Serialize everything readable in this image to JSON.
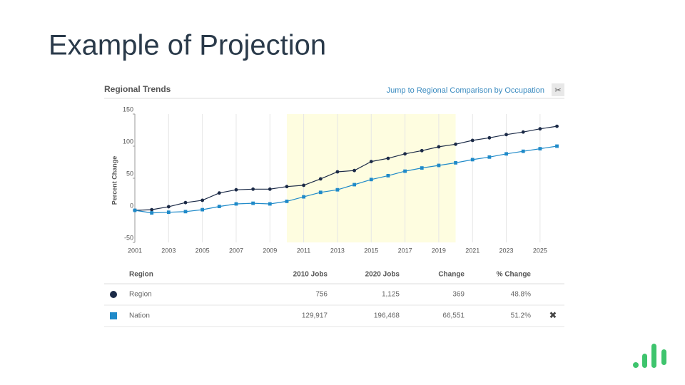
{
  "slide_title": "Example of Projection",
  "panel_title": "Regional Trends",
  "link": "Jump to Regional Comparison by Occupation",
  "chart_data": {
    "type": "line",
    "y_label": "Percent Change",
    "x": [
      2001,
      2002,
      2003,
      2004,
      2005,
      2006,
      2007,
      2008,
      2009,
      2010,
      2011,
      2012,
      2013,
      2014,
      2015,
      2016,
      2017,
      2018,
      2019,
      2020,
      2021,
      2022,
      2023,
      2024,
      2025,
      2026
    ],
    "series": [
      {
        "name": "Region",
        "color": "#1b2a47",
        "values": [
          0,
          1,
          5.6,
          12,
          15.6,
          27,
          32,
          33,
          33,
          37,
          39,
          49,
          60,
          62,
          76,
          81,
          88,
          93,
          99,
          103,
          109,
          113,
          118,
          122,
          127,
          131
        ]
      },
      {
        "name": "Nation",
        "color": "#1f8ac9",
        "values": [
          0,
          -4,
          -3,
          -2,
          1,
          6,
          10,
          11,
          10,
          14,
          21,
          28,
          32,
          40,
          48,
          54,
          61,
          66,
          70,
          74,
          79,
          83,
          88,
          92,
          96,
          100
        ]
      }
    ],
    "xlim": [
      2001,
      2026.4
    ],
    "xticks": [
      2001,
      2003,
      2005,
      2007,
      2009,
      2011,
      2013,
      2015,
      2017,
      2019,
      2021,
      2023,
      2025
    ],
    "ylim": [
      -50,
      150
    ],
    "yticks": [
      -50,
      0,
      50,
      100,
      150
    ],
    "highlight": [
      2010,
      2020
    ],
    "grid": true
  },
  "table": {
    "headers": [
      "Region",
      "2010 Jobs",
      "2020 Jobs",
      "Change",
      "% Change"
    ],
    "rows": [
      [
        "Region",
        "756",
        "1,125",
        "369",
        "48.8%"
      ],
      [
        "Nation",
        "129,917",
        "196,468",
        "66,551",
        "51.2%"
      ]
    ]
  }
}
